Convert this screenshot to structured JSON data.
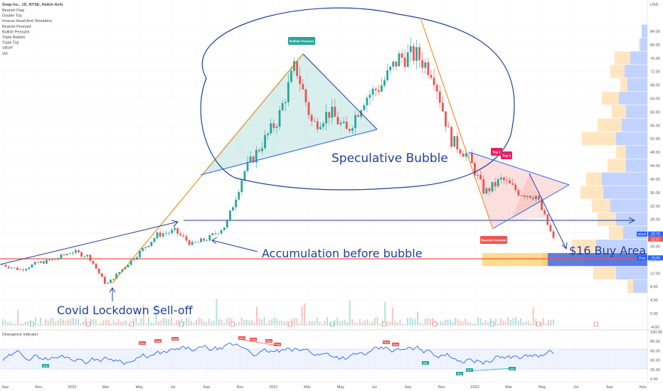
{
  "header": {
    "title": "Snap Inc., 1D, NYSE, Heikin Ashi",
    "indicators": [
      "Bearish Flag",
      "Double Top",
      "Inverse Head And Shoulders",
      "Bearish Pennant",
      "Bullish Pennant",
      "Triple Bottom",
      "Triple Top",
      "VRVP",
      "Vol"
    ]
  },
  "chart_data": {
    "type": "candlestick",
    "title": "Snap Inc., 1D, NYSE, Heikin Ashi",
    "y_axis": {
      "currency": "USD",
      "ticks": [
        "84.00",
        "80.00",
        "76.00",
        "72.00",
        "68.00",
        "64.00",
        "60.00",
        "56.00",
        "52.00",
        "48.00",
        "44.00",
        "40.00",
        "36.00",
        "32.00",
        "28.00",
        "24.00",
        "20.00",
        "16.00",
        "12.00",
        "8.00",
        "4.00",
        "0.00",
        "-4.00"
      ],
      "range": [
        -5,
        88
      ]
    },
    "x_axis": {
      "ticks": [
        "Sep",
        "Nov",
        "2020",
        "Mar",
        "May",
        "Jul",
        "Sep",
        "Nov",
        "2021",
        "Mar",
        "May",
        "Jul",
        "Sep",
        "Nov",
        "2022",
        "Mar",
        "May",
        "Jul",
        "Sep",
        "Nov"
      ]
    },
    "price_path": [
      [
        "2019-09",
        14.5
      ],
      [
        "2019-10",
        13.0
      ],
      [
        "2019-11",
        15.0
      ],
      [
        "2019-12",
        16.0
      ],
      [
        "2020-01",
        18.5
      ],
      [
        "2020-02",
        17.0
      ],
      [
        "2020-03",
        8.5
      ],
      [
        "2020-04",
        13.5
      ],
      [
        "2020-05",
        18.5
      ],
      [
        "2020-06",
        23.5
      ],
      [
        "2020-07",
        24.5
      ],
      [
        "2020-08",
        20.5
      ],
      [
        "2020-09",
        22.5
      ],
      [
        "2020-10",
        26.5
      ],
      [
        "2020-11",
        42.0
      ],
      [
        "2020-12",
        50.0
      ],
      [
        "2021-01",
        58.0
      ],
      [
        "2021-02",
        74.0
      ],
      [
        "2021-03",
        56.0
      ],
      [
        "2021-04",
        60.0
      ],
      [
        "2021-05",
        54.0
      ],
      [
        "2021-06",
        64.0
      ],
      [
        "2021-07",
        68.0
      ],
      [
        "2021-08",
        76.0
      ],
      [
        "2021-09",
        77.0
      ],
      [
        "2021-10",
        72.0
      ],
      [
        "2021-11",
        52.0
      ],
      [
        "2021-12",
        47.0
      ],
      [
        "2022-01",
        36.0
      ],
      [
        "2022-02",
        40.0
      ],
      [
        "2022-03",
        36.0
      ],
      [
        "2022-04",
        35.0
      ],
      [
        "2022-05",
        22.0
      ]
    ],
    "price_labels": [
      {
        "label": "SNAP",
        "value": "22.70",
        "color": "#2962ff"
      },
      {
        "label": "",
        "value": "22.47",
        "color": "#ef5350"
      },
      {
        "label": "Post",
        "value": "16.04",
        "color": "#2962ff"
      }
    ],
    "annotations": {
      "speculative": "Speculative Bubble",
      "accumulation": "Accumulation before bubble",
      "covid": "Covid Lockdown Sell-off",
      "buy_area": "$16 Buy Area",
      "bullish_pennant": "Bullish Pennant",
      "bearish_pennant": "Bearish Pennant",
      "top1": "Top 1",
      "top2": "Top 2"
    },
    "volume_profile": [
      {
        "price": 84,
        "up": 8,
        "down": 0
      },
      {
        "price": 80,
        "up": 10,
        "down": 2
      },
      {
        "price": 76,
        "up": 24,
        "down": 22
      },
      {
        "price": 72,
        "up": 32,
        "down": 20
      },
      {
        "price": 68,
        "up": 28,
        "down": 10
      },
      {
        "price": 64,
        "up": 40,
        "down": 24
      },
      {
        "price": 60,
        "up": 30,
        "down": 20
      },
      {
        "price": 56,
        "up": 36,
        "down": 34
      },
      {
        "price": 52,
        "up": 44,
        "down": 48
      },
      {
        "price": 48,
        "up": 30,
        "down": 14
      },
      {
        "price": 44,
        "up": 30,
        "down": 26
      },
      {
        "price": 40,
        "up": 64,
        "down": 22
      },
      {
        "price": 36,
        "up": 62,
        "down": 32
      },
      {
        "price": 32,
        "up": 52,
        "down": 26
      },
      {
        "price": 28,
        "up": 44,
        "down": 26
      },
      {
        "price": 24,
        "up": 34,
        "down": 20
      },
      {
        "price": 20,
        "up": 72,
        "down": 34
      },
      {
        "price": 16,
        "up": 90,
        "down": 58
      },
      {
        "price": 12,
        "up": 44,
        "down": 32
      },
      {
        "price": 8,
        "up": 20,
        "down": 8
      }
    ],
    "divergence": {
      "title": "Divergence Indicator",
      "ticks": [
        "100.00",
        "80.00",
        "60.00",
        "40.00",
        "20.00",
        "0.00"
      ],
      "bear_label": "Bear",
      "bull_label": "Bull"
    }
  },
  "colors": {
    "up": "#26a69a",
    "down": "#ef5350",
    "trend_blue": "#1f3ea0",
    "trend_orange": "#f57c00",
    "vp_up": "#2962ff",
    "vp_down": "#ffb74d"
  }
}
